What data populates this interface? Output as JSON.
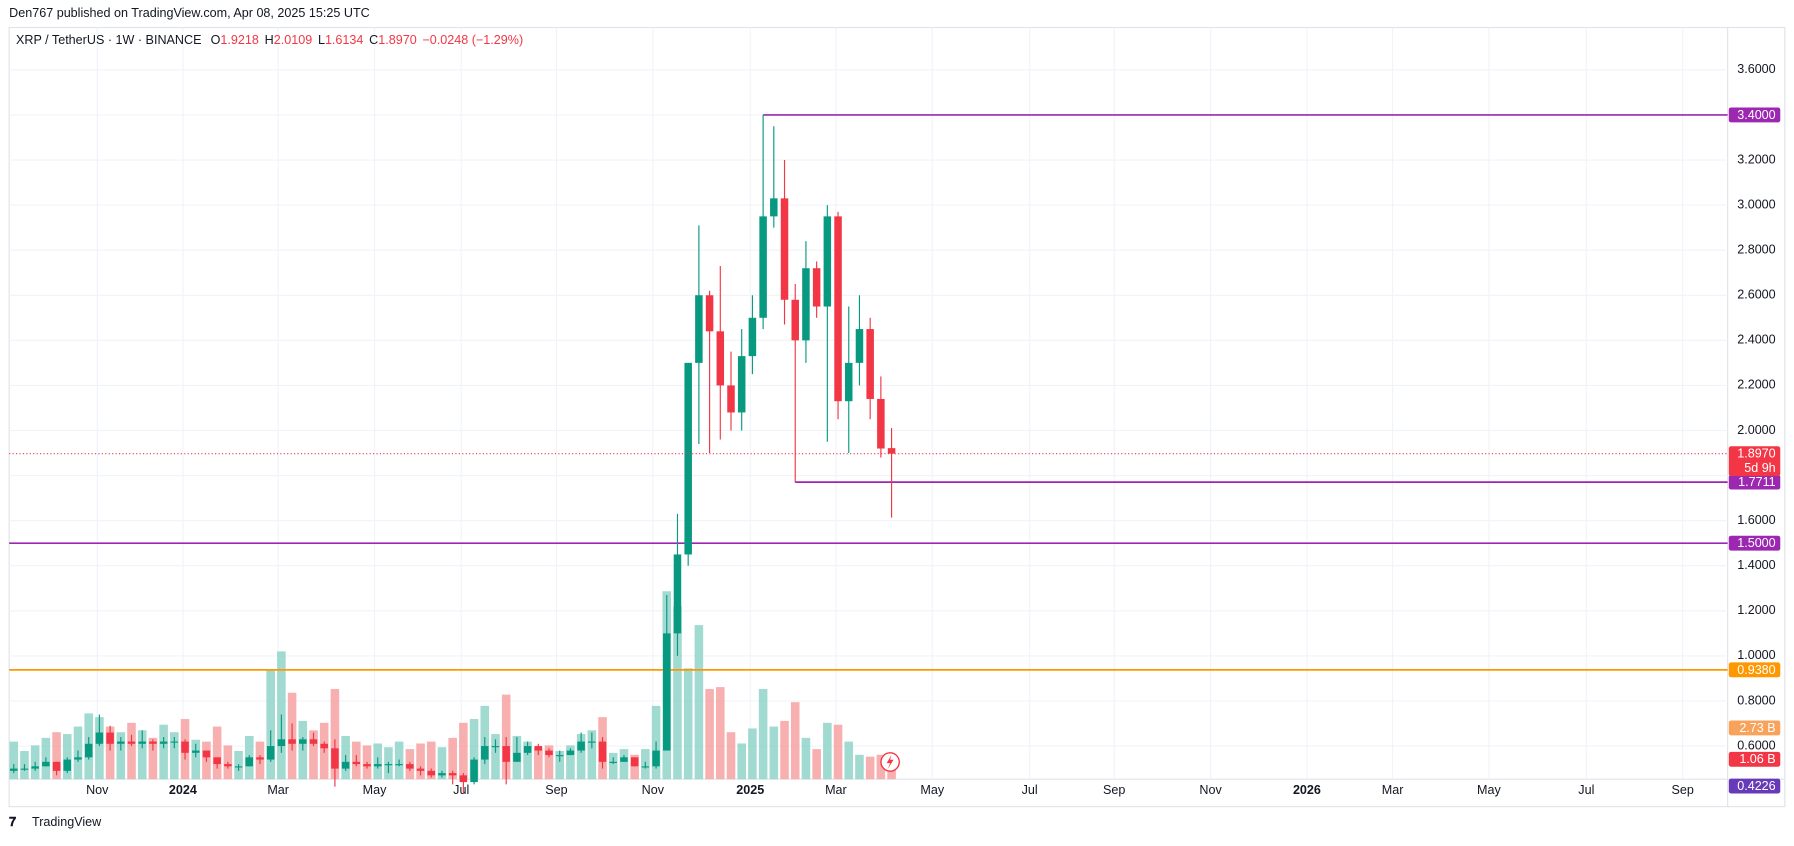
{
  "header": {
    "publisher": "Den767 published on TradingView.com, Apr 08, 2025 15:25 UTC"
  },
  "chart_data": {
    "type": "candlestick",
    "title": "XRP / TetherUS · 1W · BINANCE",
    "ohlc_labels": [
      "O",
      "H",
      "L",
      "C"
    ],
    "last_close_label": "1.8970",
    "change_label": "−0.0248 (−1.29%)",
    "countdown": "5d 9h",
    "open": [
      0.49,
      0.5,
      0.5,
      0.51,
      0.53,
      0.49,
      0.54,
      0.55,
      0.61,
      0.66,
      0.61,
      0.62,
      0.61,
      0.62,
      0.61,
      0.62,
      0.62,
      0.57,
      0.58,
      0.55,
      0.52,
      0.51,
      0.51,
      0.55,
      0.54,
      0.6,
      0.63,
      0.61,
      0.63,
      0.61,
      0.59,
      0.5,
      0.53,
      0.52,
      0.51,
      0.52,
      0.52,
      0.52,
      0.5,
      0.49,
      0.47,
      0.48,
      0.47,
      0.44,
      0.54,
      0.6,
      0.6,
      0.53,
      0.57,
      0.6,
      0.58,
      0.56,
      0.56,
      0.58,
      0.62,
      0.62,
      0.53,
      0.53,
      0.55,
      0.51,
      0.51,
      0.58,
      1.1,
      1.45,
      2.3,
      2.6,
      2.44,
      2.2,
      2.08,
      2.33,
      2.5,
      2.95,
      3.03,
      2.58,
      2.4,
      2.72,
      2.55,
      2.95,
      2.13,
      2.3,
      2.45,
      2.14,
      1.9218
    ],
    "high": [
      0.52,
      0.52,
      0.53,
      0.55,
      0.53,
      0.55,
      0.58,
      0.64,
      0.74,
      0.69,
      0.64,
      0.65,
      0.67,
      0.63,
      0.64,
      0.64,
      0.63,
      0.61,
      0.58,
      0.55,
      0.53,
      0.52,
      0.56,
      0.56,
      0.67,
      0.74,
      0.7,
      0.64,
      0.66,
      0.62,
      0.63,
      0.56,
      0.56,
      0.53,
      0.55,
      0.53,
      0.54,
      0.53,
      0.51,
      0.5,
      0.49,
      0.49,
      0.48,
      0.55,
      0.64,
      0.63,
      0.64,
      0.64,
      0.62,
      0.61,
      0.59,
      0.58,
      0.59,
      0.66,
      0.66,
      0.64,
      0.55,
      0.56,
      0.55,
      0.53,
      0.62,
      1.27,
      1.63,
      2.3,
      2.91,
      2.62,
      2.73,
      2.35,
      2.45,
      2.6,
      3.4,
      3.35,
      3.2,
      2.65,
      2.84,
      2.75,
      3.0,
      2.97,
      2.55,
      2.6,
      2.5,
      2.24,
      2.0109
    ],
    "low": [
      0.48,
      0.49,
      0.49,
      0.51,
      0.47,
      0.48,
      0.53,
      0.54,
      0.6,
      0.58,
      0.58,
      0.6,
      0.59,
      0.58,
      0.59,
      0.59,
      0.54,
      0.55,
      0.53,
      0.5,
      0.5,
      0.49,
      0.51,
      0.52,
      0.53,
      0.57,
      0.58,
      0.58,
      0.6,
      0.57,
      0.42,
      0.49,
      0.51,
      0.5,
      0.5,
      0.48,
      0.51,
      0.49,
      0.47,
      0.46,
      0.46,
      0.43,
      0.39,
      0.43,
      0.52,
      0.57,
      0.43,
      0.53,
      0.56,
      0.56,
      0.55,
      0.53,
      0.56,
      0.57,
      0.59,
      0.5,
      0.52,
      0.53,
      0.51,
      0.5,
      0.5,
      0.58,
      1.0,
      1.4,
      1.94,
      1.9,
      1.96,
      2.0,
      2.0,
      2.25,
      2.45,
      2.9,
      2.47,
      1.77,
      2.3,
      2.5,
      1.95,
      2.05,
      1.9,
      2.2,
      2.05,
      1.88,
      1.6134
    ],
    "close": [
      0.5,
      0.5,
      0.51,
      0.53,
      0.49,
      0.54,
      0.55,
      0.61,
      0.66,
      0.61,
      0.62,
      0.61,
      0.62,
      0.61,
      0.62,
      0.62,
      0.57,
      0.58,
      0.55,
      0.52,
      0.51,
      0.51,
      0.55,
      0.54,
      0.6,
      0.63,
      0.61,
      0.63,
      0.61,
      0.59,
      0.5,
      0.53,
      0.52,
      0.51,
      0.52,
      0.52,
      0.52,
      0.5,
      0.49,
      0.47,
      0.48,
      0.47,
      0.44,
      0.54,
      0.6,
      0.6,
      0.53,
      0.57,
      0.6,
      0.58,
      0.56,
      0.56,
      0.58,
      0.62,
      0.62,
      0.53,
      0.53,
      0.55,
      0.51,
      0.51,
      0.58,
      1.1,
      1.45,
      2.3,
      2.6,
      2.44,
      2.2,
      2.08,
      2.33,
      2.5,
      2.95,
      3.03,
      2.58,
      2.4,
      2.72,
      2.55,
      2.95,
      2.13,
      2.3,
      2.45,
      2.14,
      1.92,
      1.897
    ],
    "volume": [
      2.0,
      1.5,
      1.8,
      2.2,
      2.5,
      2.4,
      2.8,
      3.5,
      3.3,
      2.8,
      2.5,
      3.0,
      2.6,
      2.2,
      2.9,
      2.5,
      3.2,
      2.1,
      2.0,
      2.8,
      1.8,
      1.5,
      2.3,
      2.0,
      5.8,
      6.8,
      4.6,
      3.1,
      2.6,
      3.0,
      4.8,
      2.3,
      2.0,
      1.8,
      1.9,
      1.7,
      2.0,
      1.6,
      1.9,
      2.0,
      1.7,
      2.2,
      3.0,
      3.2,
      3.9,
      2.4,
      4.5,
      2.3,
      2.0,
      1.7,
      1.8,
      1.5,
      1.8,
      2.4,
      2.6,
      3.3,
      1.4,
      1.6,
      1.3,
      1.6,
      3.9,
      10.0,
      9.2,
      5.9,
      8.2,
      4.8,
      4.9,
      2.5,
      1.9,
      2.7,
      4.8,
      2.8,
      3.1,
      4.1,
      2.2,
      1.6,
      3.0,
      2.9,
      2.0,
      1.3,
      1.2,
      1.3,
      1.06
    ],
    "up_color": "#089981",
    "down_color": "#f23645",
    "volume_up_color": "#8fd3c8",
    "volume_down_color": "#f7a1a1",
    "xlim": [
      -0.43,
      160.1
    ],
    "xticks": [
      {
        "value": 7.8,
        "label": "Nov"
      },
      {
        "value": 15.8,
        "label": "2024"
      },
      {
        "value": 24.7,
        "label": "Mar"
      },
      {
        "value": 33.7,
        "label": "May"
      },
      {
        "value": 41.8,
        "label": "Jul"
      },
      {
        "value": 50.7,
        "label": "Sep"
      },
      {
        "value": 59.7,
        "label": "Nov"
      },
      {
        "value": 68.8,
        "label": "2025"
      },
      {
        "value": 76.8,
        "label": "Mar"
      },
      {
        "value": 85.8,
        "label": "May"
      },
      {
        "value": 94.9,
        "label": "Jul"
      },
      {
        "value": 102.8,
        "label": "Sep"
      },
      {
        "value": 111.8,
        "label": "Nov"
      },
      {
        "value": 120.8,
        "label": "2026"
      },
      {
        "value": 128.8,
        "label": "Mar"
      },
      {
        "value": 137.8,
        "label": "May"
      },
      {
        "value": 146.9,
        "label": "Jul"
      },
      {
        "value": 155.9,
        "label": "Sep"
      }
    ],
    "ylim": [
      0.453,
      3.788
    ],
    "yticks": [
      {
        "value": 0.6,
        "label": "0.6000"
      },
      {
        "value": 0.8,
        "label": "0.8000"
      },
      {
        "value": 1.0,
        "label": "1.0000"
      },
      {
        "value": 1.2,
        "label": "1.2000"
      },
      {
        "value": 1.4,
        "label": "1.4000"
      },
      {
        "value": 1.6,
        "label": "1.6000"
      },
      {
        "value": 1.8,
        "label": "1.8000"
      },
      {
        "value": 2.0,
        "label": "2.0000"
      },
      {
        "value": 2.2,
        "label": "2.2000"
      },
      {
        "value": 2.4,
        "label": "2.4000"
      },
      {
        "value": 2.6,
        "label": "2.6000"
      },
      {
        "value": 2.8,
        "label": "2.8000"
      },
      {
        "value": 3.0,
        "label": "3.0000"
      },
      {
        "value": 3.2,
        "label": "3.2000"
      },
      {
        "value": 3.4,
        "label": "3.4000"
      },
      {
        "value": 3.6,
        "label": "3.6000"
      }
    ],
    "volume_lim": [
      0,
      40
    ],
    "grid": true,
    "levels": [
      {
        "value": 3.4,
        "label": "3.4000",
        "color": "#9c27b0",
        "start": 70
      },
      {
        "value": 1.7711,
        "label": "1.7711",
        "color": "#9c27b0",
        "start": 73
      },
      {
        "value": 1.5,
        "label": "1.5000",
        "color": "#9c27b0",
        "start": null
      },
      {
        "value": 0.938,
        "label": "0.9380",
        "color": "#ff9800",
        "start": null
      }
    ],
    "tags": [
      {
        "value": 0.4226,
        "label": "0.4226",
        "color": "#673ab7"
      }
    ],
    "volume_tags": [
      {
        "value": 2.73,
        "label": "2.73 B",
        "color": "#f7a35c"
      },
      {
        "value": 1.06,
        "label": "1.06 B",
        "color": "#f23645"
      }
    ]
  },
  "footer": {
    "brand": "TradingView"
  }
}
